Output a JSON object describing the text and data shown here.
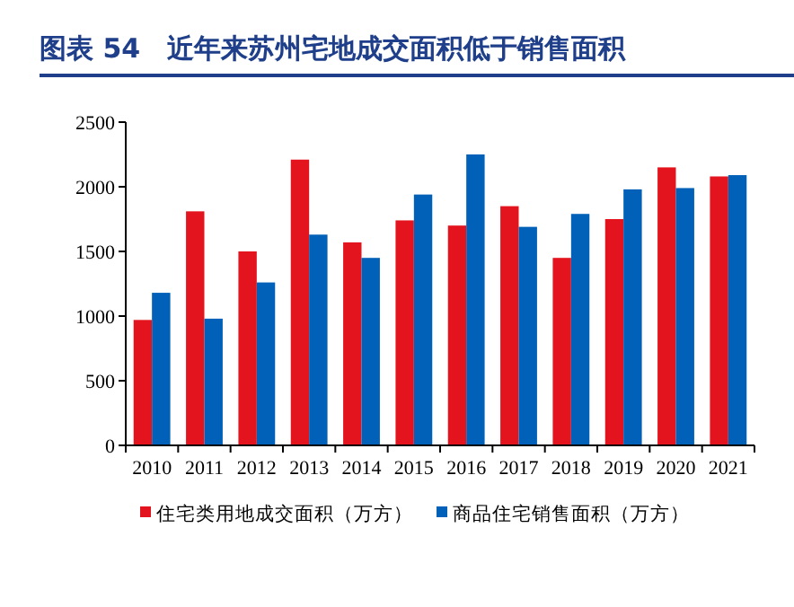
{
  "chart_data": {
    "type": "bar",
    "title": "图表 54　近年来苏州宅地成交面积低于销售面积",
    "categories": [
      "2010",
      "2011",
      "2012",
      "2013",
      "2014",
      "2015",
      "2016",
      "2017",
      "2018",
      "2019",
      "2020",
      "2021"
    ],
    "series": [
      {
        "name": "住宅类用地成交面积（万方）",
        "color": "#e3141d",
        "values": [
          970,
          1810,
          1500,
          2210,
          1570,
          1740,
          1700,
          1850,
          1450,
          1750,
          2150,
          2080
        ]
      },
      {
        "name": "商品住宅销售面积（万方）",
        "color": "#0160b8",
        "values": [
          1180,
          980,
          1260,
          1630,
          1450,
          1940,
          2250,
          1690,
          1790,
          1980,
          1990,
          2090
        ]
      }
    ],
    "ylim": [
      0,
      2500
    ],
    "yticks": [
      0,
      500,
      1000,
      1500,
      2000,
      2500
    ],
    "grid": false,
    "legend": "bottom"
  }
}
